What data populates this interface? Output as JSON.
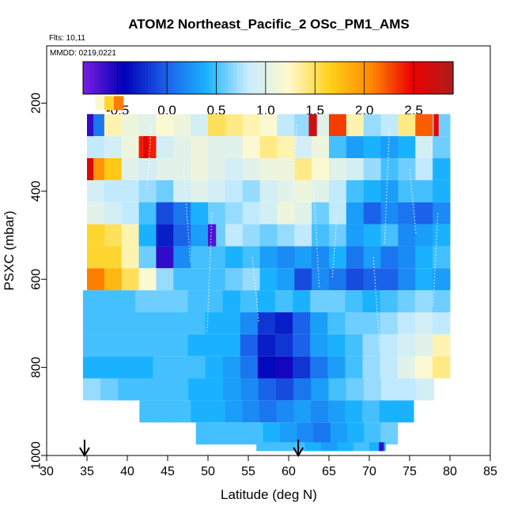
{
  "chart_data": {
    "type": "heatmap",
    "title": "ATOM2 Northeast_Pacific_2 OSc_PM1_AMS",
    "flights_label": "Flts: 10,11",
    "dates_label": "MMDD: 0219,0221",
    "xlabel": "Latitude (deg N)",
    "ylabel": "PSXC (mbar)",
    "xlim": [
      30,
      85
    ],
    "ylim": [
      1000,
      70
    ],
    "x_ticks": [
      30,
      35,
      40,
      45,
      50,
      55,
      60,
      65,
      70,
      75,
      80,
      85
    ],
    "y_ticks": [
      200,
      400,
      600,
      800,
      1000
    ],
    "colorbar": {
      "range": [
        -0.85,
        2.9
      ],
      "ticks": [
        -0.5,
        0.0,
        0.5,
        1.0,
        1.5,
        2.0,
        2.5
      ],
      "tick_labels": [
        "-0.5",
        "0.0",
        "0.5",
        "1.0",
        "1.5",
        "2.0",
        "2.5"
      ],
      "colors": [
        "#7a1ee0",
        "#0000b8",
        "#1a5fe8",
        "#1ab2ff",
        "#c8ecff",
        "#fffacd",
        "#ffd11a",
        "#ff8a00",
        "#ee0000",
        "#ad1c1c"
      ]
    },
    "takeoff_markers_lat": [
      34.7,
      61.2
    ],
    "bins": [
      {
        "p": 200,
        "lat_min": 36,
        "lat_max": 39.5,
        "values": [
          1.2,
          1.6,
          2.1
        ]
      },
      {
        "p": 250,
        "lat_min": 35,
        "lat_max": 80,
        "values": [
          0.1,
          1.3,
          1.1,
          1.0,
          1.2,
          1.1,
          0.9,
          1.5,
          1.4,
          1.3,
          1.2,
          0.8,
          0.7,
          1.0,
          2.3,
          1.3,
          0.7,
          0.8,
          1.4,
          2.2,
          0.6
        ]
      },
      {
        "p": 300,
        "lat_min": 35,
        "lat_max": 80,
        "values": [
          0.8,
          0.9,
          1.1,
          2.4,
          0.9,
          1.0,
          1.1,
          1.0,
          1.0,
          1.2,
          1.4,
          1.3,
          0.9,
          1.1,
          0.5,
          0.3,
          0.4,
          0.3,
          0.4,
          0.9,
          0.6
        ]
      },
      {
        "p": 350,
        "lat_min": 35,
        "lat_max": 80,
        "values": [
          2.0,
          1.7,
          1.0,
          0.9,
          1.0,
          1.0,
          1.1,
          1.0,
          0.9,
          1.0,
          1.1,
          1.1,
          1.4,
          1.2,
          1.0,
          0.9,
          0.7,
          0.5,
          0.6,
          0.8,
          0.4
        ]
      },
      {
        "p": 400,
        "lat_min": 35,
        "lat_max": 80,
        "values": [
          0.9,
          0.8,
          0.8,
          0.7,
          0.6,
          0.9,
          1.0,
          0.9,
          0.8,
          0.7,
          0.9,
          1.0,
          1.1,
          1.0,
          0.8,
          0.5,
          0.4,
          0.3,
          0.5,
          0.5,
          0.4
        ]
      },
      {
        "p": 450,
        "lat_min": 35,
        "lat_max": 80,
        "values": [
          1.0,
          0.9,
          0.8,
          0.5,
          -0.1,
          0.1,
          0.4,
          0.6,
          0.7,
          0.8,
          0.9,
          1.1,
          1.0,
          0.6,
          0.8,
          0.3,
          0.0,
          0.2,
          0.1,
          0.0,
          0.2
        ]
      },
      {
        "p": 500,
        "lat_min": 35,
        "lat_max": 80,
        "values": [
          1.6,
          1.5,
          1.3,
          0.4,
          -0.3,
          0.0,
          0.3,
          0.6,
          0.8,
          0.7,
          0.6,
          0.7,
          0.8,
          0.5,
          0.6,
          0.3,
          0.4,
          0.5,
          0.2,
          0.3,
          0.4
        ]
      },
      {
        "p": 550,
        "lat_min": 35,
        "lat_max": 80,
        "values": [
          1.6,
          1.6,
          1.3,
          0.6,
          -0.6,
          0.2,
          0.5,
          0.5,
          0.4,
          0.5,
          0.3,
          0.2,
          0.3,
          0.2,
          0.4,
          0.1,
          0.3,
          0.1,
          0.2,
          0.4,
          0.5
        ]
      },
      {
        "p": 600,
        "lat_min": 35,
        "lat_max": 80,
        "values": [
          2.1,
          1.8,
          1.5,
          1.2,
          0.7,
          0.5,
          0.5,
          0.5,
          0.6,
          0.7,
          0.4,
          0.3,
          -0.1,
          0.2,
          0.1,
          -0.1,
          0.0,
          0.0,
          0.2,
          0.4,
          0.3
        ]
      },
      {
        "p": 650,
        "lat_min": 34.5,
        "lat_max": 80,
        "values": [
          0.5,
          0.5,
          0.5,
          0.6,
          0.6,
          0.6,
          0.5,
          0.5,
          0.4,
          0.5,
          0.4,
          0.5,
          0.4,
          0.6,
          0.6,
          0.5,
          0.4,
          0.5,
          0.6,
          0.7,
          0.6
        ]
      },
      {
        "p": 700,
        "lat_min": 34.5,
        "lat_max": 80,
        "values": [
          0.5,
          0.5,
          0.5,
          0.5,
          0.5,
          0.5,
          0.5,
          0.4,
          0.4,
          0.2,
          -0.2,
          -0.3,
          0.0,
          0.3,
          0.5,
          0.6,
          0.6,
          0.7,
          0.8,
          0.9,
          0.8
        ]
      },
      {
        "p": 750,
        "lat_min": 34.5,
        "lat_max": 80,
        "values": [
          0.5,
          0.5,
          0.5,
          0.5,
          0.5,
          0.5,
          0.4,
          0.4,
          0.4,
          0.0,
          -0.3,
          -0.2,
          0.0,
          0.3,
          0.4,
          0.5,
          0.7,
          0.8,
          0.9,
          1.0,
          1.3
        ]
      },
      {
        "p": 800,
        "lat_min": 34.5,
        "lat_max": 80,
        "values": [
          0.4,
          0.4,
          0.4,
          0.4,
          0.5,
          0.5,
          0.5,
          0.4,
          0.3,
          0.1,
          -0.4,
          -0.5,
          -0.2,
          0.1,
          0.3,
          0.5,
          0.7,
          0.8,
          1.0,
          1.2,
          1.4
        ]
      },
      {
        "p": 850,
        "lat_min": 34.5,
        "lat_max": 78,
        "values": [
          0.7,
          0.6,
          0.5,
          0.5,
          0.5,
          0.5,
          0.4,
          0.4,
          0.3,
          0.2,
          0.0,
          -0.1,
          0.1,
          0.3,
          0.5,
          0.6,
          0.7,
          0.8,
          0.8,
          0.9
        ]
      },
      {
        "p": 900,
        "lat_min": 41.5,
        "lat_max": 75.5,
        "values": [
          0.5,
          0.5,
          0.5,
          0.4,
          0.4,
          0.3,
          0.2,
          0.1,
          0.2,
          0.3,
          0.2,
          0.3,
          0.4,
          0.5,
          0.4,
          0.4
        ]
      },
      {
        "p": 950,
        "lat_min": 48.5,
        "lat_max": 73.5,
        "values": [
          0.5,
          0.5,
          0.5,
          0.5,
          0.4,
          0.3,
          0.2,
          0.1,
          0.3,
          0.4,
          0.5,
          0.6
        ]
      },
      {
        "p": 980,
        "lat_min": 56,
        "lat_max": 72,
        "values": [
          0.5,
          0.5,
          0.5,
          0.4,
          0.3,
          0.4,
          0.5,
          0.4
        ]
      }
    ],
    "highlights": [
      {
        "p": 250,
        "lat_min": 35,
        "lat_max": 35.8,
        "value": -0.6
      },
      {
        "p": 300,
        "lat_min": 42,
        "lat_max": 42.6,
        "value": 2.6
      },
      {
        "p": 350,
        "lat_min": 35,
        "lat_max": 35.8,
        "value": 2.6
      },
      {
        "p": 500,
        "lat_min": 50,
        "lat_max": 51,
        "value": -0.7
      },
      {
        "p": 250,
        "lat_min": 62.5,
        "lat_max": 63.5,
        "value": 2.7
      },
      {
        "p": 250,
        "lat_min": 78,
        "lat_max": 78.6,
        "value": 2.5
      },
      {
        "p": 980,
        "lat_min": 71.2,
        "lat_max": 71.8,
        "value": -0.6
      }
    ]
  }
}
